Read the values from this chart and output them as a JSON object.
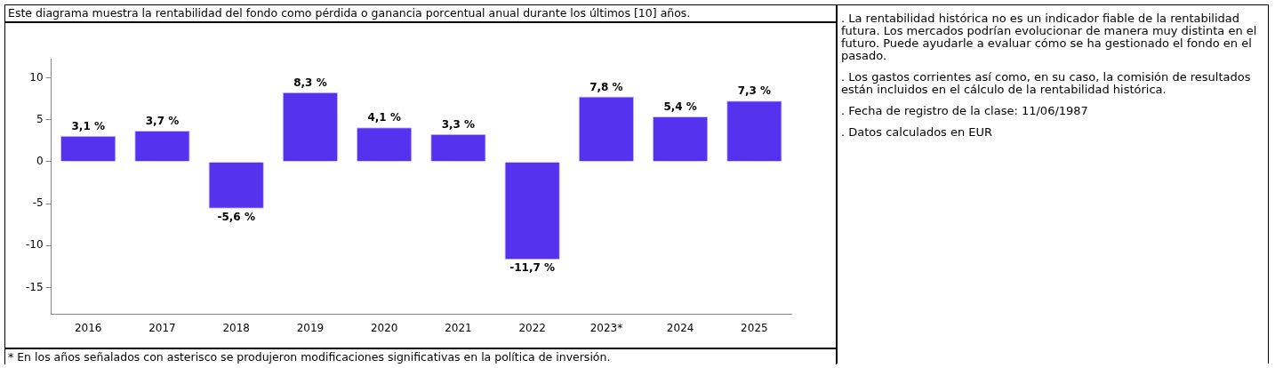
{
  "chart_data": {
    "type": "bar",
    "title": "Este diagrama muestra la rentabilidad del fondo como pérdida o ganancia porcentual anual durante los últimos [10] años.",
    "categories": [
      "2016",
      "2017",
      "2018",
      "2019",
      "2020",
      "2021",
      "2022",
      "2023*",
      "2024",
      "2025"
    ],
    "values": [
      3.1,
      3.7,
      -5.6,
      8.3,
      4.1,
      3.3,
      -11.7,
      7.8,
      5.4,
      7.3
    ],
    "value_labels": [
      "3,1 %",
      "3,7 %",
      "-5,6 %",
      "8,3 %",
      "4,1 %",
      "3,3 %",
      "-11,7 %",
      "7,8 %",
      "5,4 %",
      "7,3 %"
    ],
    "color": "#5533ee",
    "ylim": [
      -18.2,
      12.3
    ],
    "yticks": [
      -15,
      -10,
      -5,
      0,
      5,
      10
    ],
    "grid": false,
    "annotations": [
      "* En los años señalados con asterisco se produjeron modificaciones significativas en la política de inversión.",
      ". La rentabilidad histórica no es un indicador fiable de la rentabilidad futura. Los mercados podrían evolucionar de manera muy distinta en el futuro. Puede ayudarle a evaluar cómo se ha gestionado el fondo en el pasado.",
      ". Los gastos corrientes así como, en su caso, la comisión de resultados están incluidos en el cálculo de la rentabilidad histórica.",
      ". Fecha de registro de la clase: 11/06/1987",
      ". Datos calculados en EUR"
    ]
  }
}
